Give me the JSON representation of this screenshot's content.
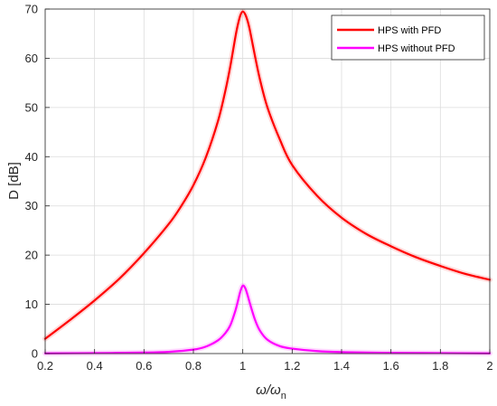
{
  "chart_data": {
    "type": "line",
    "title": "",
    "xlabel": "ω/ω",
    "xlabel_sub": "n",
    "ylabel": "D [dB]",
    "xlim": [
      0.2,
      2
    ],
    "ylim": [
      0,
      70
    ],
    "xticks": [
      0.2,
      0.4,
      0.6,
      0.8,
      1,
      1.2,
      1.4,
      1.6,
      1.8,
      2
    ],
    "xtick_labels": [
      "0.2",
      "0.4",
      "0.6",
      "0.8",
      "1",
      "1.2",
      "1.4",
      "1.6",
      "1.8",
      "2"
    ],
    "yticks": [
      0,
      10,
      20,
      30,
      40,
      50,
      60,
      70
    ],
    "ytick_labels": [
      "0",
      "10",
      "20",
      "30",
      "40",
      "50",
      "60",
      "70"
    ],
    "grid": true,
    "legend_position": "top-right",
    "series": [
      {
        "name": "HPS with PFD",
        "color": "#ff0000",
        "x": [
          0.2,
          0.3,
          0.4,
          0.5,
          0.6,
          0.7,
          0.75,
          0.8,
          0.85,
          0.9,
          0.93,
          0.95,
          0.97,
          0.98,
          0.99,
          1.0,
          1.01,
          1.02,
          1.03,
          1.05,
          1.07,
          1.1,
          1.15,
          1.2,
          1.3,
          1.4,
          1.5,
          1.6,
          1.7,
          1.8,
          1.9,
          2.0
        ],
        "y": [
          3,
          6.8,
          10.8,
          15.2,
          20.4,
          26.3,
          29.9,
          34.2,
          39.8,
          47.3,
          53.5,
          58.5,
          64.3,
          66.8,
          68.7,
          69.5,
          68.9,
          67.5,
          65.4,
          60.3,
          55.6,
          50.0,
          43.5,
          38.3,
          32.1,
          27.6,
          24.3,
          21.8,
          19.6,
          17.8,
          16.2,
          15.0
        ]
      },
      {
        "name": "HPS without PFD",
        "color": "#ff00ff",
        "x": [
          0.2,
          0.4,
          0.6,
          0.7,
          0.8,
          0.85,
          0.9,
          0.93,
          0.95,
          0.97,
          0.98,
          0.99,
          1.0,
          1.01,
          1.02,
          1.03,
          1.05,
          1.07,
          1.1,
          1.15,
          1.2,
          1.3,
          1.4,
          1.6,
          1.8,
          2.0
        ],
        "y": [
          0.05,
          0.1,
          0.2,
          0.35,
          0.8,
          1.4,
          2.7,
          4.2,
          5.8,
          8.7,
          10.6,
          12.6,
          13.8,
          13.3,
          11.8,
          10.0,
          6.8,
          4.6,
          2.8,
          1.5,
          1.0,
          0.5,
          0.3,
          0.15,
          0.1,
          0.05
        ]
      }
    ]
  }
}
